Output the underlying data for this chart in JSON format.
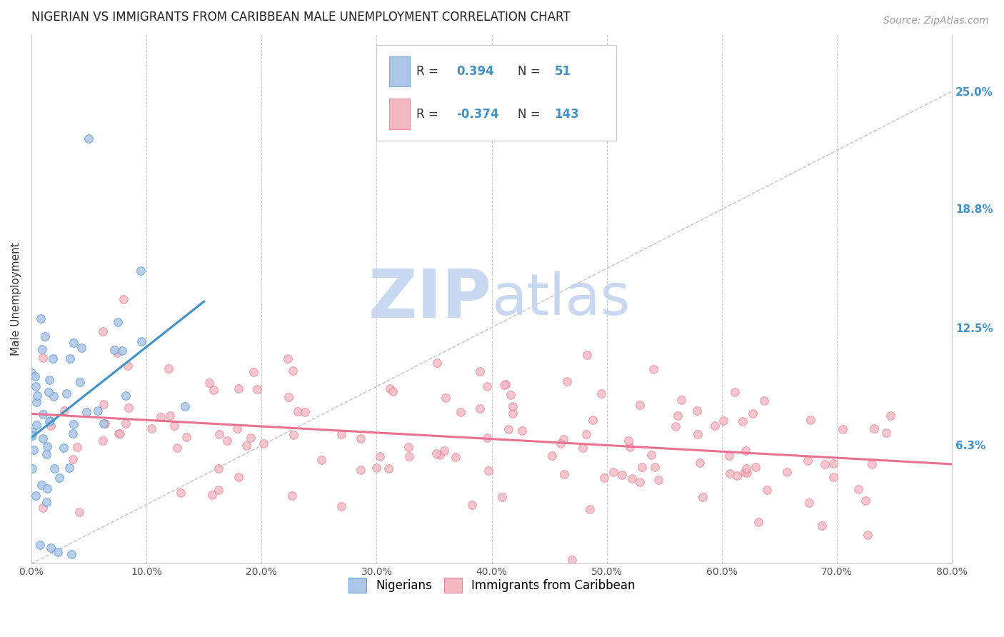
{
  "title": "NIGERIAN VS IMMIGRANTS FROM CARIBBEAN MALE UNEMPLOYMENT CORRELATION CHART",
  "source": "Source: ZipAtlas.com",
  "ylabel": "Male Unemployment",
  "xlabel_vals": [
    0,
    10,
    20,
    30,
    40,
    50,
    60,
    70,
    80
  ],
  "ylabel_vals": [
    6.3,
    12.5,
    18.8,
    25.0
  ],
  "xlim": [
    0,
    80
  ],
  "ylim": [
    0,
    28
  ],
  "legend_labels": [
    "Nigerians",
    "Immigrants from Caribbean"
  ],
  "legend_r_n": [
    {
      "R": "0.394",
      "N": "51",
      "fill": "#aec6e8",
      "edge": "#7bafd4"
    },
    {
      "R": "-0.374",
      "N": "143",
      "fill": "#f4b8c1",
      "edge": "#e890a0"
    }
  ],
  "nigerians_color": "#aec6e8",
  "caribbean_color": "#f4b8c1",
  "nigerian_line_color": "#4292c6",
  "caribbean_line_color": "#e87090",
  "watermark_zip_color": "#c8d8f0",
  "watermark_atlas_color": "#c8d8f0",
  "background_color": "#ffffff",
  "title_fontsize": 12,
  "axis_label_fontsize": 11,
  "tick_fontsize": 10,
  "legend_fontsize": 12,
  "source_fontsize": 10,
  "nigerian_R": 0.394,
  "nigerian_N": 51,
  "caribbean_R": -0.374,
  "caribbean_N": 143
}
